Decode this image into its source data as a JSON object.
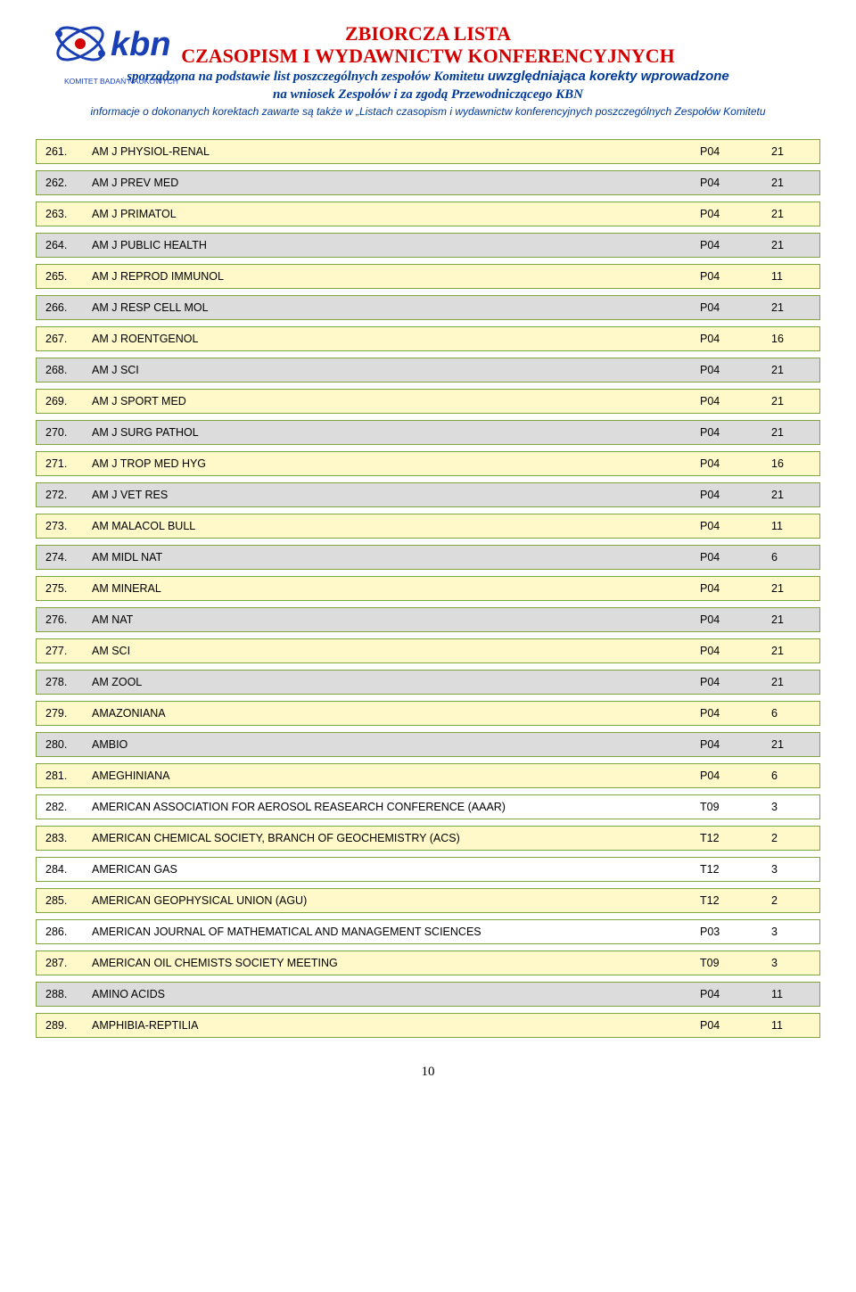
{
  "header": {
    "logo_main": "kbn",
    "logo_sub": "KOMITET BADAŃ NAUKOWYCH",
    "title_line1": "ZBIORCZA LISTA",
    "title_line2": "CZASOPISM I WYDAWNICTW KONFERENCYJNYCH",
    "sub_line1_a": "sporządzona na podstawie list poszczególnych zespołów Komitetu ",
    "sub_line1_b": "uwzględniająca korekty wprowadzone",
    "sub_line2": "na wniosek Zespołów i za zgodą Przewodniczącego KBN",
    "note": "informacje o dokonanych korektach zawarte są także w „Listach czasopism i wydawnictw konferencyjnych poszczególnych Zespołów Komitetu"
  },
  "style": {
    "row_border_color": "#7fa63f",
    "bg_yellow": "#fff9c9",
    "bg_gray": "#dcdcdc",
    "bg_plain": "#ffffff",
    "title_color": "#d40000",
    "subtitle_color": "#003a99"
  },
  "rows": [
    {
      "num": "261.",
      "name": "AM J PHYSIOL-RENAL",
      "code": "P04",
      "val": "21",
      "bg": "yellow"
    },
    {
      "num": "262.",
      "name": "AM J PREV MED",
      "code": "P04",
      "val": "21",
      "bg": "gray"
    },
    {
      "num": "263.",
      "name": "AM J PRIMATOL",
      "code": "P04",
      "val": "21",
      "bg": "yellow"
    },
    {
      "num": "264.",
      "name": "AM J PUBLIC HEALTH",
      "code": "P04",
      "val": "21",
      "bg": "gray"
    },
    {
      "num": "265.",
      "name": "AM J REPROD IMMUNOL",
      "code": "P04",
      "val": "11",
      "bg": "yellow"
    },
    {
      "num": "266.",
      "name": "AM J RESP CELL MOL",
      "code": "P04",
      "val": "21",
      "bg": "gray"
    },
    {
      "num": "267.",
      "name": "AM J ROENTGENOL",
      "code": "P04",
      "val": "16",
      "bg": "yellow"
    },
    {
      "num": "268.",
      "name": "AM J SCI",
      "code": "P04",
      "val": "21",
      "bg": "gray"
    },
    {
      "num": "269.",
      "name": "AM J SPORT MED",
      "code": "P04",
      "val": "21",
      "bg": "yellow"
    },
    {
      "num": "270.",
      "name": "AM J SURG PATHOL",
      "code": "P04",
      "val": "21",
      "bg": "gray"
    },
    {
      "num": "271.",
      "name": "AM J TROP MED HYG",
      "code": "P04",
      "val": "16",
      "bg": "yellow"
    },
    {
      "num": "272.",
      "name": "AM J VET RES",
      "code": "P04",
      "val": "21",
      "bg": "gray"
    },
    {
      "num": "273.",
      "name": "AM MALACOL BULL",
      "code": "P04",
      "val": "11",
      "bg": "yellow"
    },
    {
      "num": "274.",
      "name": "AM MIDL NAT",
      "code": "P04",
      "val": "6",
      "bg": "gray"
    },
    {
      "num": "275.",
      "name": "AM MINERAL",
      "code": "P04",
      "val": "21",
      "bg": "yellow"
    },
    {
      "num": "276.",
      "name": "AM NAT",
      "code": "P04",
      "val": "21",
      "bg": "gray"
    },
    {
      "num": "277.",
      "name": "AM SCI",
      "code": "P04",
      "val": "21",
      "bg": "yellow"
    },
    {
      "num": "278.",
      "name": "AM ZOOL",
      "code": "P04",
      "val": "21",
      "bg": "gray"
    },
    {
      "num": "279.",
      "name": "AMAZONIANA",
      "code": "P04",
      "val": "6",
      "bg": "yellow"
    },
    {
      "num": "280.",
      "name": "AMBIO",
      "code": "P04",
      "val": "21",
      "bg": "gray"
    },
    {
      "num": "281.",
      "name": "AMEGHINIANA",
      "code": "P04",
      "val": "6",
      "bg": "yellow"
    },
    {
      "num": "282.",
      "name": "AMERICAN ASSOCIATION FOR AEROSOL REASEARCH CONFERENCE (AAAR)",
      "code": "T09",
      "val": "3",
      "bg": "plain"
    },
    {
      "num": "283.",
      "name": "AMERICAN CHEMICAL SOCIETY, BRANCH OF GEOCHEMISTRY (ACS)",
      "code": "T12",
      "val": "2",
      "bg": "yellow"
    },
    {
      "num": "284.",
      "name": "AMERICAN GAS",
      "code": "T12",
      "val": "3",
      "bg": "plain"
    },
    {
      "num": "285.",
      "name": "AMERICAN GEOPHYSICAL UNION (AGU)",
      "code": "T12",
      "val": "2",
      "bg": "yellow"
    },
    {
      "num": "286.",
      "name": "AMERICAN JOURNAL OF MATHEMATICAL AND MANAGEMENT SCIENCES",
      "code": "P03",
      "val": "3",
      "bg": "plain"
    },
    {
      "num": "287.",
      "name": "AMERICAN OIL CHEMISTS SOCIETY MEETING",
      "code": "T09",
      "val": "3",
      "bg": "yellow"
    },
    {
      "num": "288.",
      "name": "AMINO ACIDS",
      "code": "P04",
      "val": "11",
      "bg": "gray"
    },
    {
      "num": "289.",
      "name": "AMPHIBIA-REPTILIA",
      "code": "P04",
      "val": "11",
      "bg": "yellow"
    }
  ],
  "page_number": "10"
}
